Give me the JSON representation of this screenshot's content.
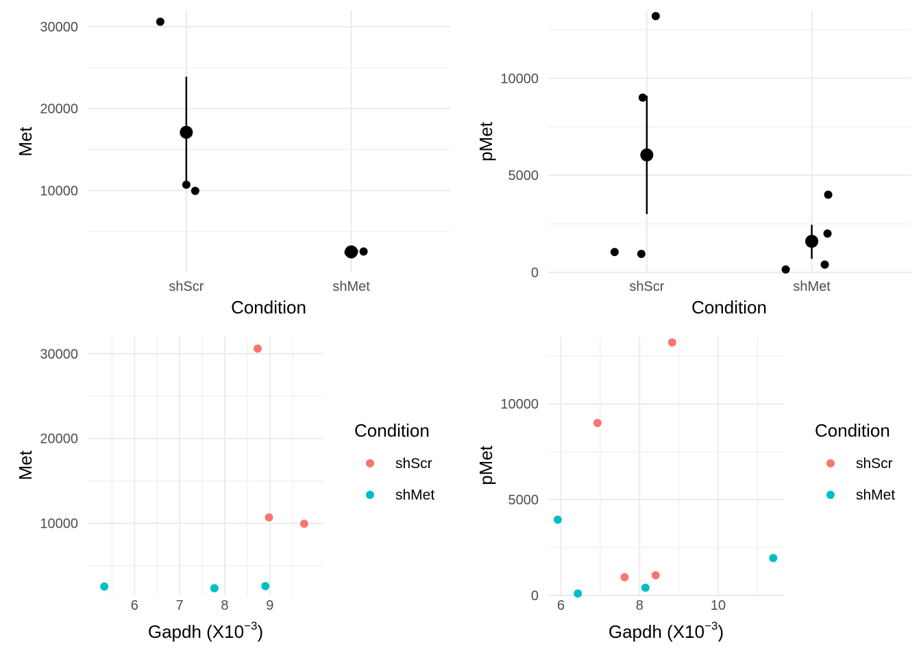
{
  "colors": {
    "shScr": "#F8766D",
    "shMet": "#00BFC4",
    "summary": "#000000",
    "grid": "#EBEBEB"
  },
  "chart_data": [
    {
      "type": "scatter",
      "title": "",
      "xlabel": "Condition",
      "ylabel": "Met",
      "categories": [
        "shScr",
        "shMet"
      ],
      "ylim": [
        0,
        32000
      ],
      "yticks": [
        10000,
        20000,
        30000
      ],
      "points": [
        {
          "category": "shScr",
          "y": 30600
        },
        {
          "category": "shScr",
          "y": 10700
        },
        {
          "category": "shScr",
          "y": 9950
        },
        {
          "category": "shMet",
          "y": 2550
        },
        {
          "category": "shMet",
          "y": 2450
        },
        {
          "category": "shMet",
          "y": 2500
        },
        {
          "category": "shMet",
          "y": 2550
        }
      ],
      "summary": [
        {
          "category": "shScr",
          "mean": 17100,
          "low": 10400,
          "high": 23900
        },
        {
          "category": "shMet",
          "mean": 2500,
          "low": 2400,
          "high": 2600
        }
      ]
    },
    {
      "type": "scatter",
      "title": "",
      "xlabel": "Condition",
      "ylabel": "pMet",
      "categories": [
        "shScr",
        "shMet"
      ],
      "ylim": [
        0,
        13500
      ],
      "yticks": [
        0,
        5000,
        10000
      ],
      "points": [
        {
          "category": "shScr",
          "y": 13200
        },
        {
          "category": "shScr",
          "y": 9000
        },
        {
          "category": "shScr",
          "y": 1050
        },
        {
          "category": "shScr",
          "y": 950
        },
        {
          "category": "shMet",
          "y": 4000
        },
        {
          "category": "shMet",
          "y": 2000
        },
        {
          "category": "shMet",
          "y": 400
        },
        {
          "category": "shMet",
          "y": 150
        }
      ],
      "summary": [
        {
          "category": "shScr",
          "mean": 6050,
          "low": 3000,
          "high": 9100
        },
        {
          "category": "shMet",
          "mean": 1600,
          "low": 700,
          "high": 2450
        }
      ]
    },
    {
      "type": "scatter",
      "title": "",
      "xlabel": "Gapdh (X10",
      "xlabel_sup": "−3",
      "xlabel_suffix": ")",
      "ylabel": "Met",
      "xlim": [
        5.2,
        9.95
      ],
      "ylim": [
        1500,
        32000
      ],
      "xticks": [
        6,
        7,
        8,
        9
      ],
      "yticks": [
        10000,
        20000,
        30000
      ],
      "legend": {
        "title": "Condition",
        "position": "right"
      },
      "series": [
        {
          "name": "shScr",
          "points": [
            {
              "x": 8.73,
              "y": 30600
            },
            {
              "x": 8.98,
              "y": 10700
            },
            {
              "x": 9.76,
              "y": 9950
            }
          ]
        },
        {
          "name": "shMet",
          "points": [
            {
              "x": 5.33,
              "y": 2550
            },
            {
              "x": 7.77,
              "y": 2350
            },
            {
              "x": 8.9,
              "y": 2600
            }
          ]
        }
      ]
    },
    {
      "type": "scatter",
      "title": "",
      "xlabel": "Gapdh (X10",
      "xlabel_sup": "−3",
      "xlabel_suffix": ")",
      "ylabel": "pMet",
      "xlim": [
        5.95,
        11.4
      ],
      "ylim": [
        0,
        13500
      ],
      "xticks": [
        6,
        8,
        10
      ],
      "yticks": [
        0,
        5000,
        10000
      ],
      "legend": {
        "title": "Condition",
        "position": "right"
      },
      "series": [
        {
          "name": "shScr",
          "points": [
            {
              "x": 8.83,
              "y": 13200
            },
            {
              "x": 6.93,
              "y": 9000
            },
            {
              "x": 7.62,
              "y": 950
            },
            {
              "x": 8.41,
              "y": 1050
            }
          ]
        },
        {
          "name": "shMet",
          "points": [
            {
              "x": 5.92,
              "y": 3950
            },
            {
              "x": 6.43,
              "y": 100
            },
            {
              "x": 8.15,
              "y": 400
            },
            {
              "x": 11.4,
              "y": 1950
            }
          ]
        }
      ]
    }
  ]
}
